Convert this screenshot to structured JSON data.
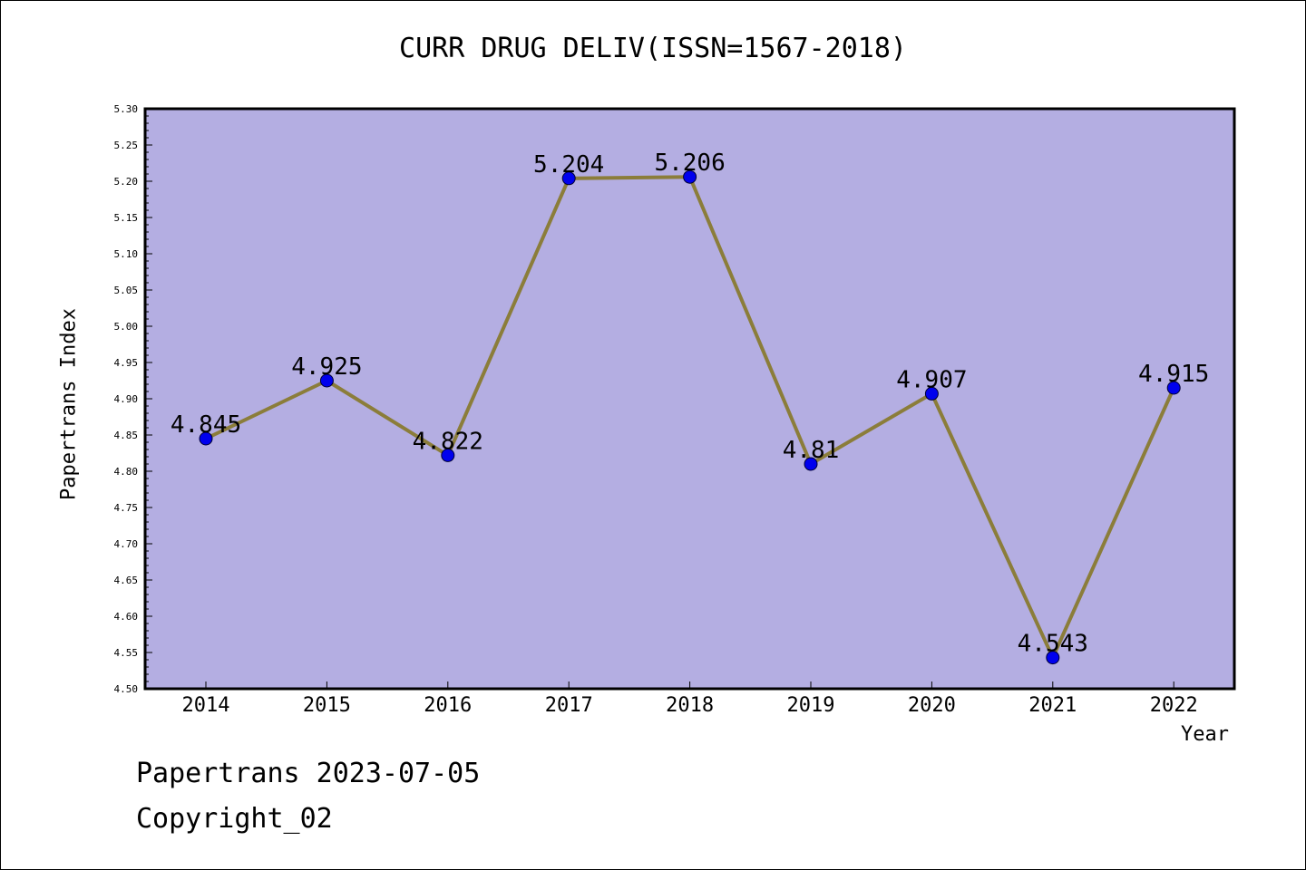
{
  "chart_data": {
    "type": "line",
    "title": "CURR DRUG DELIV(ISSN=1567-2018)",
    "xlabel": "Year",
    "ylabel": "Papertrans Index",
    "categories": [
      "2014",
      "2015",
      "2016",
      "2017",
      "2018",
      "2019",
      "2020",
      "2021",
      "2022"
    ],
    "values": [
      4.845,
      4.925,
      4.822,
      5.204,
      5.206,
      4.81,
      4.907,
      4.543,
      4.915
    ],
    "data_labels": [
      "4.845",
      "4.925",
      "4.822",
      "5.204",
      "5.206",
      "4.81",
      "4.907",
      "4.543",
      "4.915"
    ],
    "ylim": [
      4.5,
      5.3
    ],
    "yticks": [
      "4.50",
      "4.55",
      "4.60",
      "4.65",
      "4.70",
      "4.75",
      "4.80",
      "4.85",
      "4.90",
      "4.95",
      "5.00",
      "5.05",
      "5.10",
      "5.15",
      "5.20",
      "5.25",
      "5.30"
    ],
    "grid": false,
    "legend": "none",
    "colors": {
      "plot_bg": "#b4aee2",
      "line": "#8b7d3a",
      "marker": "#0000ee"
    }
  },
  "footer": {
    "line1": "Papertrans 2023-07-05",
    "line2": "Copyright_02"
  }
}
